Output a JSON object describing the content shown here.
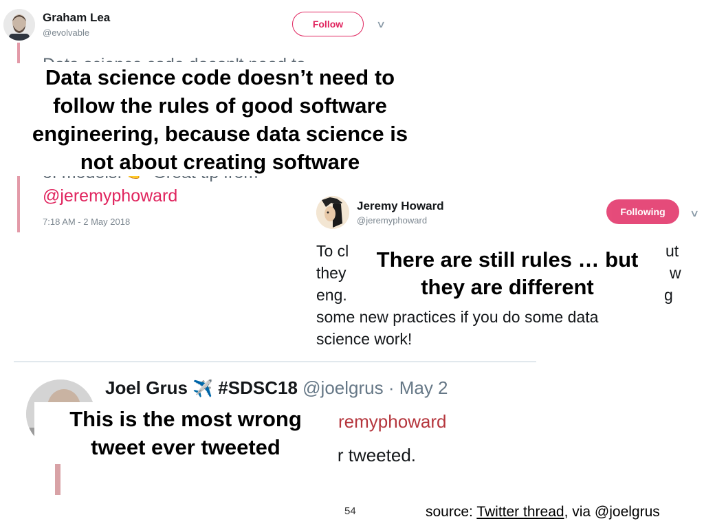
{
  "tweet1": {
    "name": "Graham Lea",
    "handle": "@evolvable",
    "follow_label": "Follow",
    "partial_line_top": "Data science code doesn't need to",
    "partial_line_bottom": "of models. 👉 Great tip from",
    "mention": "@jeremyphoward",
    "timestamp": "7:18 AM - 2 May 2018"
  },
  "caption1": {
    "lines": [
      "Data science code doesn’t need to",
      "follow the rules of good software",
      "engineering, because data science is",
      "not about creating software"
    ]
  },
  "tweet2": {
    "name": "Jeremy Howard",
    "handle": "@jeremyphoward",
    "follow_label": "Following",
    "body_lines": [
      "To cl",
      "they",
      "eng.",
      "some new practices if you do some data",
      "science work!"
    ],
    "edge_fragments": [
      "ut",
      "w",
      "g"
    ]
  },
  "caption2": {
    "lines": [
      "There are still rules … but",
      "they are different"
    ]
  },
  "tweet3": {
    "name": "Joel Grus",
    "plane_icon": "✈️",
    "hashtag": "#SDSC18",
    "meta": "@joelgrus · May 2",
    "mention_partial": "remyphoward",
    "body_partial": "et ever tweeted."
  },
  "caption3": {
    "lines": [
      "This is the most wrong",
      "tweet ever tweeted"
    ]
  },
  "footer": {
    "page_number": "54",
    "source_prefix": "source: ",
    "source_link": "Twitter thread",
    "source_suffix": ", via @joelgrus"
  },
  "colors": {
    "accent": "#e0245e",
    "text": "#14171a",
    "muted": "#7c8790",
    "reply_bar": "#e39aa8"
  }
}
